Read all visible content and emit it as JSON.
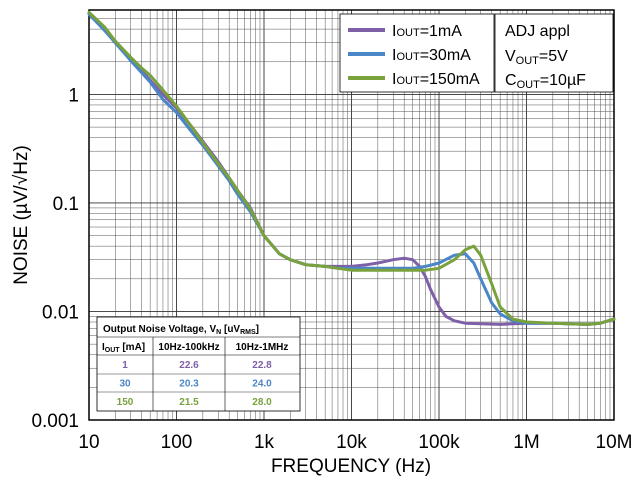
{
  "chart_data": {
    "type": "line",
    "xscale": "log",
    "yscale": "log",
    "xlim": [
      10,
      10000000
    ],
    "ylim": [
      0.001,
      6
    ],
    "xlabel": "FREQUENCY (Hz)",
    "ylabel": "NOISE (µV/√Hz)",
    "xticks": [
      {
        "value": 10,
        "label": "10"
      },
      {
        "value": 100,
        "label": "100"
      },
      {
        "value": 1000,
        "label": "1k"
      },
      {
        "value": 10000,
        "label": "10k"
      },
      {
        "value": 100000,
        "label": "100k"
      },
      {
        "value": 1000000,
        "label": "1M"
      },
      {
        "value": 10000000,
        "label": "10M"
      }
    ],
    "yticks": [
      {
        "value": 0.001,
        "label": "0.001"
      },
      {
        "value": 0.01,
        "label": "0.01"
      },
      {
        "value": 0.1,
        "label": "0.1"
      },
      {
        "value": 1,
        "label": "1"
      }
    ],
    "grid": true,
    "legend_position": "top-right",
    "conditions": {
      "line1": "ADJ appl",
      "line2_main": "V",
      "line2_sub": "OUT",
      "line2_rest": "=5V",
      "line3_main": "C",
      "line3_sub": "OUT",
      "line3_rest": "=10µF"
    },
    "series": [
      {
        "name": "IOUT=1mA",
        "legend_main": "I",
        "legend_sub": "OUT",
        "legend_rest": "=1mA",
        "color": "#7e5fa8",
        "x": [
          10,
          15,
          20,
          30,
          50,
          70,
          100,
          150,
          200,
          300,
          400,
          500,
          700,
          1000,
          1500,
          2000,
          3000,
          5000,
          7000,
          10000,
          15000,
          20000,
          30000,
          40000,
          50000,
          60000,
          70000,
          80000,
          100000,
          120000,
          150000,
          200000,
          300000,
          500000,
          700000,
          1000000,
          2000000,
          3000000,
          5000000,
          7000000,
          10000000
        ],
        "y": [
          5.6,
          4.0,
          3.1,
          2.15,
          1.35,
          1.0,
          0.75,
          0.5,
          0.37,
          0.24,
          0.17,
          0.13,
          0.09,
          0.05,
          0.034,
          0.03,
          0.027,
          0.026,
          0.026,
          0.026,
          0.027,
          0.028,
          0.03,
          0.031,
          0.03,
          0.026,
          0.021,
          0.016,
          0.011,
          0.009,
          0.0082,
          0.0078,
          0.0077,
          0.0076,
          0.0077,
          0.0078,
          0.0078,
          0.0077,
          0.0076,
          0.0078,
          0.0085
        ]
      },
      {
        "name": "IOUT=30mA",
        "legend_main": "I",
        "legend_sub": "OUT",
        "legend_rest": "=30mA",
        "color": "#4a86c8",
        "x": [
          10,
          15,
          20,
          30,
          50,
          70,
          100,
          150,
          200,
          300,
          400,
          500,
          700,
          1000,
          1500,
          2000,
          3000,
          5000,
          7000,
          10000,
          15000,
          20000,
          30000,
          50000,
          70000,
          100000,
          150000,
          200000,
          250000,
          300000,
          400000,
          500000,
          700000,
          1000000,
          2000000,
          3000000,
          5000000,
          7000000,
          10000000
        ],
        "y": [
          5.5,
          3.9,
          3.0,
          2.05,
          1.3,
          0.9,
          0.68,
          0.45,
          0.34,
          0.22,
          0.16,
          0.12,
          0.083,
          0.05,
          0.034,
          0.03,
          0.027,
          0.026,
          0.025,
          0.025,
          0.025,
          0.025,
          0.025,
          0.025,
          0.026,
          0.028,
          0.033,
          0.034,
          0.028,
          0.02,
          0.012,
          0.0095,
          0.0082,
          0.0078,
          0.0078,
          0.0077,
          0.0076,
          0.0078,
          0.0085
        ]
      },
      {
        "name": "IOUT=150mA",
        "legend_main": "I",
        "legend_sub": "OUT",
        "legend_rest": "=150mA",
        "color": "#79a23c",
        "x": [
          10,
          15,
          20,
          30,
          40,
          50,
          70,
          100,
          150,
          200,
          300,
          400,
          500,
          700,
          1000,
          1500,
          2000,
          3000,
          5000,
          7000,
          10000,
          15000,
          20000,
          30000,
          50000,
          70000,
          100000,
          150000,
          200000,
          250000,
          300000,
          400000,
          500000,
          700000,
          1000000,
          2000000,
          3000000,
          5000000,
          7000000,
          10000000
        ],
        "y": [
          5.7,
          4.2,
          3.1,
          2.2,
          1.75,
          1.5,
          1.1,
          0.78,
          0.5,
          0.36,
          0.23,
          0.17,
          0.13,
          0.088,
          0.05,
          0.034,
          0.03,
          0.027,
          0.026,
          0.025,
          0.024,
          0.024,
          0.024,
          0.024,
          0.024,
          0.024,
          0.025,
          0.03,
          0.037,
          0.04,
          0.033,
          0.018,
          0.011,
          0.0085,
          0.008,
          0.0078,
          0.0077,
          0.0076,
          0.0078,
          0.0085
        ]
      }
    ],
    "table": {
      "title_main": "Output Noise Voltage, V",
      "title_sub1": "N",
      "title_mid": " [uV",
      "title_sub2": "RMS",
      "title_end": "]",
      "header_col1_main": "I",
      "header_col1_sub": "OUT",
      "header_col1_rest": " [mA]",
      "header_col2": "10Hz-100kHz",
      "header_col3": "10Hz-1MHz",
      "rows": [
        {
          "iout": "1",
          "v100k": "22.6",
          "v1m": "22.8",
          "color": "#7e5fa8"
        },
        {
          "iout": "30",
          "v100k": "20.3",
          "v1m": "24.0",
          "color": "#4a86c8"
        },
        {
          "iout": "150",
          "v100k": "21.5",
          "v1m": "28.0",
          "color": "#79a23c"
        }
      ]
    }
  }
}
